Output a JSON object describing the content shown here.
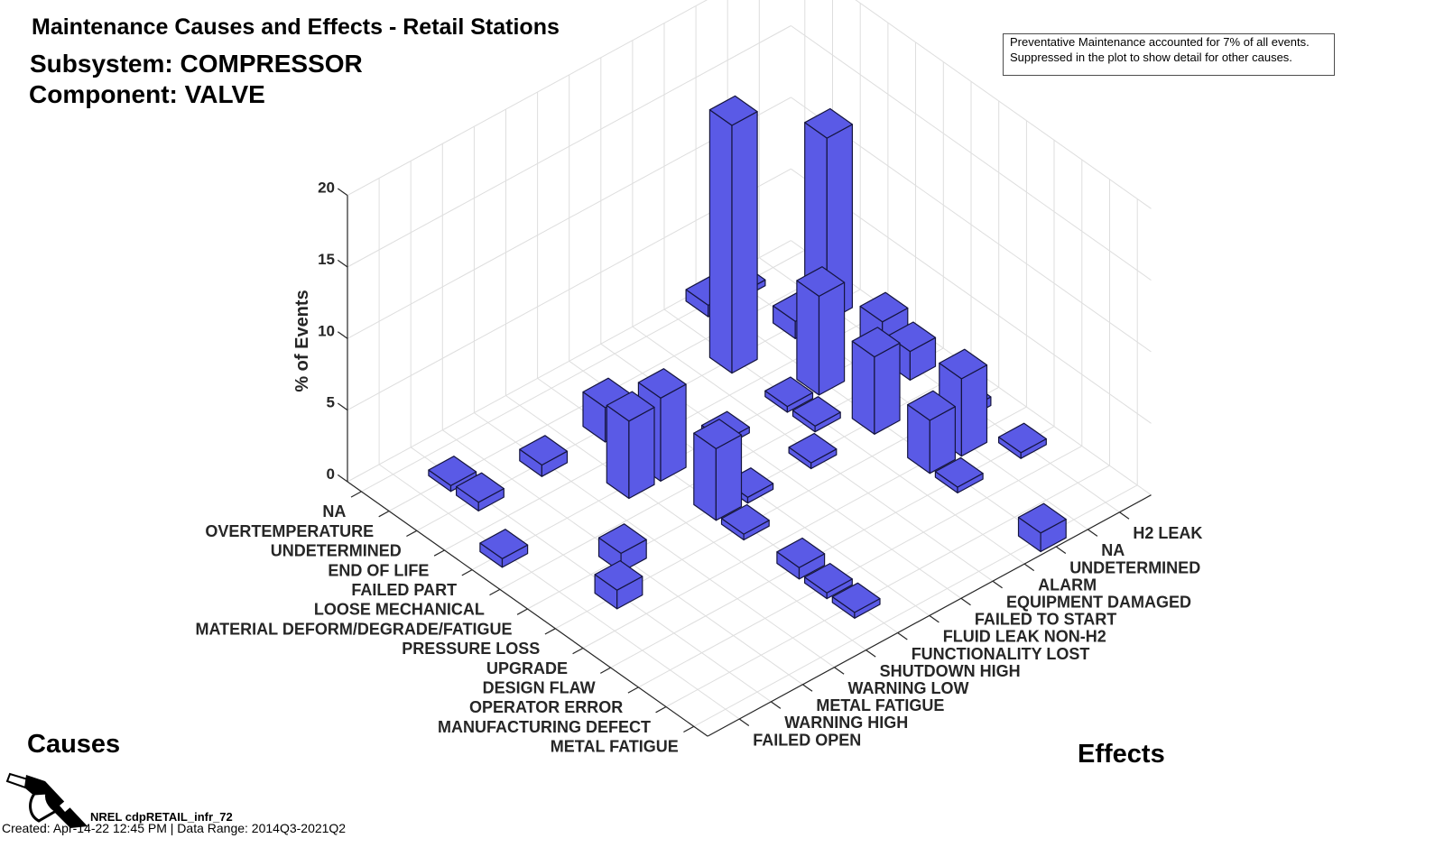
{
  "header": {
    "subsystem": "Subsystem: COMPRESSOR",
    "component": "Component: VALVE"
  },
  "annotation": {
    "lines": [
      "Preventative Maintenance accounted for 7% of all events.",
      "Suppressed in the plot to show detail for other causes."
    ]
  },
  "footer": {
    "logo_icon": "fuel-nozzle-icon",
    "logo_text": "NREL cdpRETAIL_infr_72",
    "created": "Created: Apr-14-22 12:45 PM | Data Range: 2014Q3-2021Q2"
  },
  "colors": {
    "bar": "#5a5ae6",
    "edge": "#15153f",
    "grid": "#dedede",
    "axis": "#262626"
  },
  "chart_data": {
    "type": "bar",
    "subtype": "3d",
    "title": "Maintenance Causes and Effects - Retail Stations",
    "causes_label": "Causes",
    "effects_label": "Effects",
    "zlabel": "% of Events",
    "zlim": [
      0,
      20
    ],
    "zticks": [
      0,
      5,
      10,
      15,
      20
    ],
    "grid": true,
    "causes": [
      "NA",
      "OVERTEMPERATURE",
      "UNDETERMINED",
      "END OF LIFE",
      "FAILED PART",
      "LOOSE MECHANICAL",
      "MATERIAL DEFORM/DEGRADE/FATIGUE",
      "PRESSURE LOSS",
      "UPGRADE",
      "DESIGN FLAW",
      "OPERATOR ERROR",
      "MANUFACTURING DEFECT",
      "METAL FATIGUE"
    ],
    "effects": [
      "FAILED OPEN",
      "WARNING HIGH",
      "METAL FATIGUE",
      "WARNING LOW",
      "SHUTDOWN HIGH",
      "FUNCTIONALITY LOST",
      "FLUID LEAK NON-H2",
      "FAILED TO START",
      "EQUIPMENT DAMAGED",
      "ALARM",
      "UNDETERMINED",
      "NA",
      "H2 LEAK"
    ],
    "values": [
      {
        "cause": "OVERTEMPERATURE",
        "effect": "WARNING HIGH",
        "value": 0.4
      },
      {
        "cause": "UNDETERMINED",
        "effect": "WARNING HIGH",
        "value": 0.6
      },
      {
        "cause": "UNDETERMINED",
        "effect": "WARNING LOW",
        "value": 0.8
      },
      {
        "cause": "FAILED PART",
        "effect": "FAILED OPEN",
        "value": 0.6
      },
      {
        "cause": "MATERIAL DEFORM/DEGRADE/FATIGUE",
        "effect": "METAL FATIGUE",
        "value": 1.3
      },
      {
        "cause": "PRESSURE LOSS",
        "effect": "WARNING HIGH",
        "value": 1.3
      },
      {
        "cause": "UNDETERMINED",
        "effect": "FUNCTIONALITY LOST",
        "value": 2.4
      },
      {
        "cause": "FAILED PART",
        "effect": "SHUTDOWN HIGH",
        "value": 5.4
      },
      {
        "cause": "FAILED PART",
        "effect": "FUNCTIONALITY LOST",
        "value": 5.8
      },
      {
        "cause": "MATERIAL DEFORM/DEGRADE/FATIGUE",
        "effect": "FUNCTIONALITY LOST",
        "value": 5.0
      },
      {
        "cause": "FAILED PART",
        "effect": "FAILED TO START",
        "value": 0.4
      },
      {
        "cause": "MATERIAL DEFORM/DEGRADE/FATIGUE",
        "effect": "FLUID LEAK NON-H2",
        "value": 0.4
      },
      {
        "cause": "PRESSURE LOSS",
        "effect": "FUNCTIONALITY LOST",
        "value": 0.4
      },
      {
        "cause": "UNDETERMINED",
        "effect": "ALARM",
        "value": 17.3
      },
      {
        "cause": "UNDETERMINED",
        "effect": "H2 LEAK",
        "value": 12.8
      },
      {
        "cause": "NA",
        "effect": "UNDETERMINED",
        "value": 0.8
      },
      {
        "cause": "NA",
        "effect": "NA",
        "value": 0.4
      },
      {
        "cause": "FAILED PART",
        "effect": "UNDETERMINED",
        "value": 6.9
      },
      {
        "cause": "UNDETERMINED",
        "effect": "NA",
        "value": 1.2
      },
      {
        "cause": "FAILED PART",
        "effect": "H2 LEAK",
        "value": 2.7
      },
      {
        "cause": "LOOSE MECHANICAL",
        "effect": "H2 LEAK",
        "value": 2.0
      },
      {
        "cause": "FAILED PART",
        "effect": "ALARM",
        "value": 0.4
      },
      {
        "cause": "LOOSE MECHANICAL",
        "effect": "ALARM",
        "value": 0.4
      },
      {
        "cause": "MATERIAL DEFORM/DEGRADE/FATIGUE",
        "effect": "EQUIPMENT DAMAGED",
        "value": 0.4
      },
      {
        "cause": "MATERIAL DEFORM/DEGRADE/FATIGUE",
        "effect": "UNDETERMINED",
        "value": 5.4
      },
      {
        "cause": "UPGRADE",
        "effect": "NA",
        "value": 5.4
      },
      {
        "cause": "UPGRADE",
        "effect": "UNDETERMINED",
        "value": 3.7
      },
      {
        "cause": "DESIGN FLAW",
        "effect": "UNDETERMINED",
        "value": 0.4
      },
      {
        "cause": "DESIGN FLAW",
        "effect": "H2 LEAK",
        "value": 0.4
      },
      {
        "cause": "PRESSURE LOSS",
        "effect": "H2 LEAK",
        "value": 0.6
      },
      {
        "cause": "DESIGN FLAW",
        "effect": "FUNCTIONALITY LOST",
        "value": 0.8
      },
      {
        "cause": "OPERATOR ERROR",
        "effect": "FUNCTIONALITY LOST",
        "value": 0.4
      },
      {
        "cause": "MANUFACTURING DEFECT",
        "effect": "FUNCTIONALITY LOST",
        "value": 0.4
      },
      {
        "cause": "METAL FATIGUE",
        "effect": "UNDETERMINED",
        "value": 1.3
      }
    ]
  }
}
